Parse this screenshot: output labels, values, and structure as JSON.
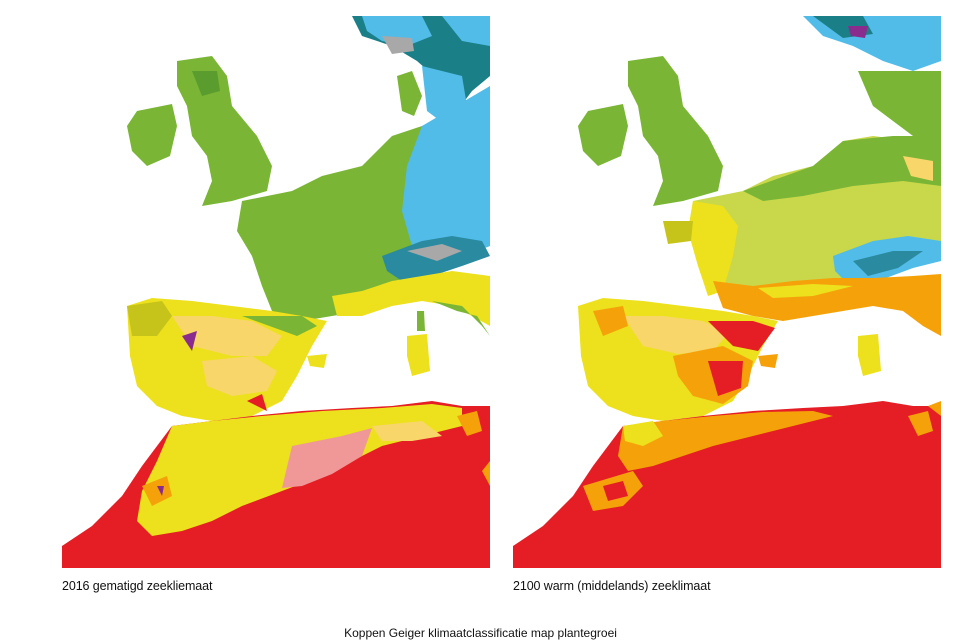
{
  "figure": {
    "title": "Koppen Geiger klimaatclassificatie map plantegroei"
  },
  "maps": [
    {
      "caption": "2016 gematigd zeekliemaat"
    },
    {
      "caption": "2100 warm (middelands) zeeklimaat"
    }
  ],
  "legend_colors": {
    "temperate_oceanic": "#7ab535",
    "warm_summer_temperate": "#c8d84a",
    "continental": "#52bce8",
    "alpine": "#2a8aa0",
    "tundra_highland": "#a8a8a8",
    "dry_summer_mediterranean": "#ece11c",
    "mediterranean_hot": "#f8d66a",
    "semi_arid": "#f5a20a",
    "steppe": "#f09898",
    "hot_desert": "#e41e24",
    "subarctic": "#1a7f86",
    "highland_purple": "#8a2b8e",
    "olive_dry": "#c6c41a"
  }
}
